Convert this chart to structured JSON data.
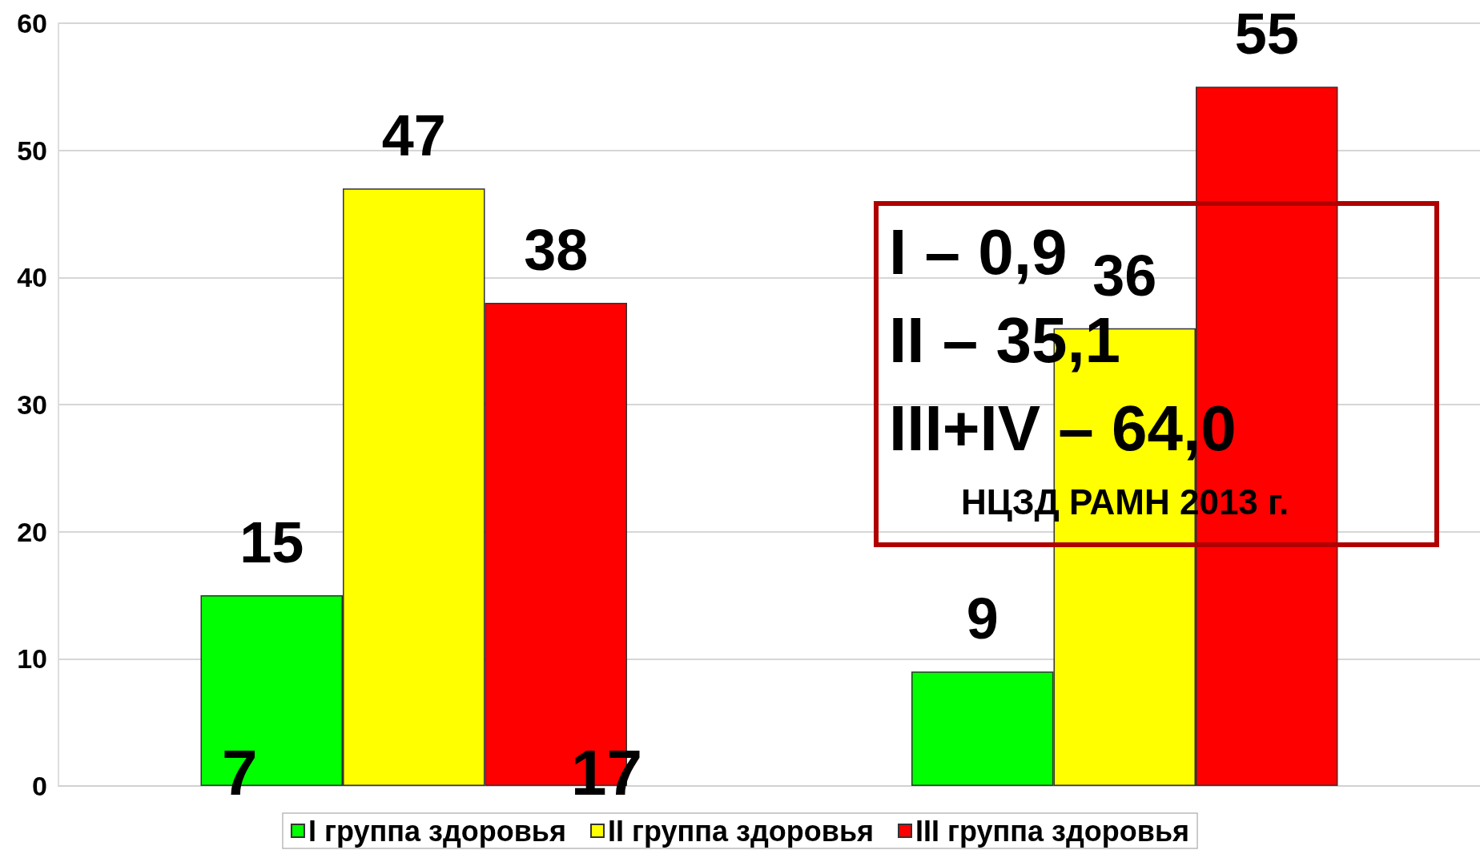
{
  "chart_data": {
    "type": "bar",
    "categories": [
      null,
      null
    ],
    "series": [
      {
        "name": "I группа здоровья",
        "color": "#00ff00",
        "values": [
          15,
          9
        ]
      },
      {
        "name": "II группа здоровья",
        "color": "#ffff00",
        "values": [
          47,
          36
        ]
      },
      {
        "name": "III группа здоровья",
        "color": "#ff0000",
        "values": [
          38,
          55
        ]
      }
    ],
    "ylim": [
      0,
      60
    ],
    "yticks": [
      0,
      10,
      20,
      30,
      40,
      50,
      60
    ],
    "grid": "y",
    "legend": "bottom",
    "data_labels": true,
    "tick_labels": "y",
    "annotations": [
      "7",
      "17",
      "I – 0,9",
      "II – 35,1",
      "III+IV – 64,0",
      "НЦЗД РАМН 2013 г."
    ]
  }
}
